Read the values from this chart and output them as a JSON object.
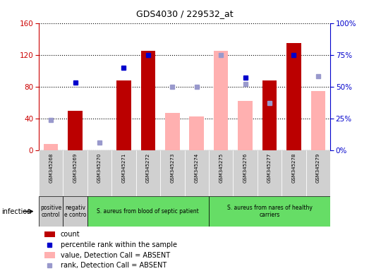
{
  "title": "GDS4030 / 229532_at",
  "samples": [
    "GSM345268",
    "GSM345269",
    "GSM345270",
    "GSM345271",
    "GSM345272",
    "GSM345273",
    "GSM345274",
    "GSM345275",
    "GSM345276",
    "GSM345277",
    "GSM345278",
    "GSM345279"
  ],
  "count": [
    null,
    50,
    null,
    88,
    125,
    null,
    null,
    null,
    null,
    88,
    135,
    null
  ],
  "percentile_rank_pct": [
    null,
    53,
    null,
    65,
    75,
    null,
    null,
    null,
    57,
    null,
    75,
    null
  ],
  "value_absent": [
    8,
    null,
    null,
    null,
    null,
    47,
    43,
    125,
    62,
    null,
    null,
    75
  ],
  "rank_absent_pct": [
    24,
    null,
    6,
    null,
    null,
    50,
    50,
    75,
    52,
    37,
    null,
    58
  ],
  "groups": [
    {
      "label": "positive\ncontrol",
      "start": 0,
      "end": 1,
      "color": "#cccccc"
    },
    {
      "label": "negativ\ne contro",
      "start": 1,
      "end": 2,
      "color": "#cccccc"
    },
    {
      "label": "S. aureus from blood of septic patient",
      "start": 2,
      "end": 7,
      "color": "#66dd66"
    },
    {
      "label": "S. aureus from nares of healthy\ncarriers",
      "start": 7,
      "end": 12,
      "color": "#66dd66"
    }
  ],
  "ylim_left": [
    0,
    160
  ],
  "ylim_right": [
    0,
    100
  ],
  "left_ticks": [
    0,
    40,
    80,
    120,
    160
  ],
  "right_ticks": [
    0,
    25,
    50,
    75,
    100
  ],
  "left_color": "#cc0000",
  "right_color": "#0000cc",
  "bar_color_count": "#bb0000",
  "bar_color_absent_value": "#ffb0b0",
  "dot_color_rank": "#0000cc",
  "dot_color_rank_absent": "#9999cc",
  "grid_color": "black",
  "bg_color": "#f0f0f0"
}
